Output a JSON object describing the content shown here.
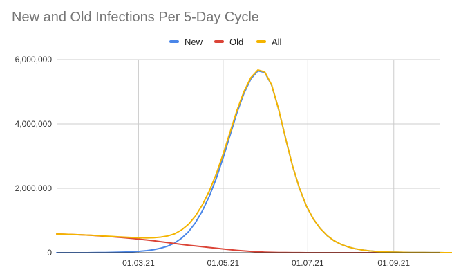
{
  "chart_data": {
    "type": "line",
    "title": "New and Old Infections Per 5-Day Cycle",
    "xlabel": "",
    "ylabel": "",
    "x_start": "2021-01-01",
    "x_end": "2021-10-04",
    "x_step_days": 5,
    "x_ticks": [
      {
        "date": "2021-03-01",
        "label": "01.03.21"
      },
      {
        "date": "2021-05-01",
        "label": "01.05.21"
      },
      {
        "date": "2021-07-01",
        "label": "01.07.21"
      },
      {
        "date": "2021-09-01",
        "label": "01.09.21"
      }
    ],
    "ylim": [
      0,
      6000000
    ],
    "y_ticks": [
      {
        "value": 0,
        "label": "0"
      },
      {
        "value": 2000000,
        "label": "2,000,000"
      },
      {
        "value": 4000000,
        "label": "4,000,000"
      },
      {
        "value": 6000000,
        "label": "6,000,000"
      }
    ],
    "grid": true,
    "legend_position": "top",
    "series": [
      {
        "name": "New",
        "color": "#4a86e8",
        "values": [
          0,
          0,
          0,
          0,
          0,
          2000,
          4000,
          7000,
          10000,
          15000,
          22000,
          32000,
          45000,
          65000,
          95000,
          140000,
          205000,
          300000,
          450000,
          650000,
          930000,
          1300000,
          1750000,
          2300000,
          2950000,
          3650000,
          4350000,
          4950000,
          5400000,
          5650000,
          5600000,
          5200000,
          4450000,
          3550000,
          2700000,
          2000000,
          1450000,
          1050000,
          750000,
          530000,
          370000,
          260000,
          180000,
          125000,
          85000,
          58000,
          40000,
          28000,
          20000,
          14000,
          10000,
          7000,
          5000,
          3500,
          2500,
          1500,
          1000,
          500,
          0
        ]
      },
      {
        "name": "Old",
        "color": "#db4437",
        "values": [
          580000,
          575000,
          568000,
          560000,
          550000,
          540000,
          525000,
          510000,
          495000,
          478000,
          460000,
          440000,
          418000,
          395000,
          370000,
          343000,
          315000,
          286000,
          258000,
          232000,
          208000,
          185000,
          162000,
          139000,
          116000,
          94000,
          74000,
          56000,
          40000,
          27000,
          17000,
          10000,
          6000,
          4000,
          2500,
          1500,
          1000,
          500,
          300,
          200,
          100,
          0,
          0,
          0,
          0,
          0,
          0,
          0,
          0,
          0,
          0,
          0,
          0,
          0,
          0,
          0,
          0,
          0,
          0
        ]
      },
      {
        "name": "All",
        "color": "#f4b400",
        "values": [
          580000,
          575000,
          568000,
          560000,
          550000,
          542000,
          529000,
          517000,
          505000,
          493000,
          482000,
          472000,
          463000,
          460000,
          465000,
          483000,
          520000,
          586000,
          708000,
          882000,
          1138000,
          1485000,
          1912000,
          2439000,
          3066000,
          3744000,
          4424000,
          5006000,
          5440000,
          5677000,
          5617000,
          5210000,
          4456000,
          3554000,
          2702500,
          2001500,
          1451000,
          1050500,
          750300,
          530200,
          370100,
          260000,
          180000,
          125000,
          85000,
          58000,
          40000,
          28000,
          20000,
          14000,
          10000,
          7000,
          5000,
          3500,
          2500,
          1500,
          1000,
          500,
          0
        ]
      }
    ]
  }
}
